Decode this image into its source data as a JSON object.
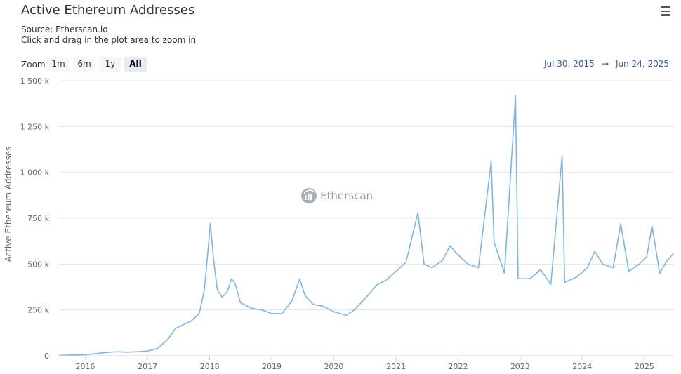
{
  "header": {
    "title": "Active Ethereum Addresses",
    "source": "Source: Etherscan.io",
    "hint": "Click and drag in the plot area to zoom in"
  },
  "toolbar": {
    "menu_icon": "hamburger-menu-icon"
  },
  "range_selector": {
    "zoom_label": "Zoom",
    "buttons": [
      {
        "label": "1m"
      },
      {
        "label": "6m"
      },
      {
        "label": "1y"
      },
      {
        "label": "All",
        "active": true
      }
    ],
    "from": "Jul 30, 2015",
    "arrow": "→",
    "to": "Jun 24, 2025"
  },
  "watermark": {
    "text": "Etherscan",
    "icon": "etherscan-logo-icon"
  },
  "colors": {
    "series": "#7cb5ec",
    "grid": "#e6e6e6",
    "range_value": "#335cad",
    "active_button": "#e6ebf5"
  },
  "chart_data": {
    "type": "line",
    "title": "Active Ethereum Addresses",
    "subtitle": "Source: Etherscan.io",
    "xlabel": "",
    "ylabel": "Active Ethereum Addresses",
    "xlim": [
      "2015-07-30",
      "2025-06-24"
    ],
    "ylim": [
      0,
      1500000
    ],
    "y_ticks": [
      {
        "value": 0,
        "label": "0"
      },
      {
        "value": 250000,
        "label": "250 k"
      },
      {
        "value": 500000,
        "label": "500 k"
      },
      {
        "value": 750000,
        "label": "750 k"
      },
      {
        "value": 1000000,
        "label": "1 000 k"
      },
      {
        "value": 1250000,
        "label": "1 250 k"
      },
      {
        "value": 1500000,
        "label": "1 500 k"
      }
    ],
    "x_ticks": [
      {
        "value": "2016-01-01",
        "label": "2016"
      },
      {
        "value": "2017-01-01",
        "label": "2017"
      },
      {
        "value": "2018-01-01",
        "label": "2018"
      },
      {
        "value": "2019-01-01",
        "label": "2019"
      },
      {
        "value": "2020-01-01",
        "label": "2020"
      },
      {
        "value": "2021-01-01",
        "label": "2021"
      },
      {
        "value": "2022-01-01",
        "label": "2022"
      },
      {
        "value": "2023-01-01",
        "label": "2023"
      },
      {
        "value": "2024-01-01",
        "label": "2024"
      },
      {
        "value": "2025-01-01",
        "label": "2025"
      }
    ],
    "grid": true,
    "legend": false,
    "series": [
      {
        "points": [
          [
            "2015-07-30",
            2000
          ],
          [
            "2015-10-01",
            4000
          ],
          [
            "2016-01-01",
            6000
          ],
          [
            "2016-03-01",
            12000
          ],
          [
            "2016-05-01",
            18000
          ],
          [
            "2016-07-01",
            22000
          ],
          [
            "2016-09-01",
            20000
          ],
          [
            "2016-11-01",
            22000
          ],
          [
            "2017-01-01",
            26000
          ],
          [
            "2017-03-01",
            40000
          ],
          [
            "2017-05-01",
            90000
          ],
          [
            "2017-06-15",
            150000
          ],
          [
            "2017-08-01",
            170000
          ],
          [
            "2017-09-15",
            190000
          ],
          [
            "2017-11-01",
            230000
          ],
          [
            "2017-12-01",
            360000
          ],
          [
            "2017-12-20",
            550000
          ],
          [
            "2018-01-05",
            720000
          ],
          [
            "2018-01-25",
            520000
          ],
          [
            "2018-02-15",
            360000
          ],
          [
            "2018-03-15",
            320000
          ],
          [
            "2018-04-15",
            350000
          ],
          [
            "2018-05-10",
            420000
          ],
          [
            "2018-06-01",
            390000
          ],
          [
            "2018-07-01",
            290000
          ],
          [
            "2018-09-01",
            260000
          ],
          [
            "2018-11-01",
            250000
          ],
          [
            "2019-01-01",
            230000
          ],
          [
            "2019-03-01",
            230000
          ],
          [
            "2019-05-01",
            300000
          ],
          [
            "2019-06-15",
            420000
          ],
          [
            "2019-07-15",
            330000
          ],
          [
            "2019-09-01",
            280000
          ],
          [
            "2019-11-01",
            270000
          ],
          [
            "2020-01-01",
            240000
          ],
          [
            "2020-03-15",
            220000
          ],
          [
            "2020-05-01",
            250000
          ],
          [
            "2020-07-01",
            310000
          ],
          [
            "2020-09-15",
            390000
          ],
          [
            "2020-11-01",
            410000
          ],
          [
            "2021-01-01",
            460000
          ],
          [
            "2021-03-01",
            510000
          ],
          [
            "2021-05-10",
            780000
          ],
          [
            "2021-06-15",
            500000
          ],
          [
            "2021-08-01",
            480000
          ],
          [
            "2021-10-01",
            520000
          ],
          [
            "2021-11-15",
            600000
          ],
          [
            "2022-01-01",
            550000
          ],
          [
            "2022-03-01",
            500000
          ],
          [
            "2022-05-01",
            480000
          ],
          [
            "2022-07-15",
            1060000
          ],
          [
            "2022-08-01",
            620000
          ],
          [
            "2022-10-01",
            450000
          ],
          [
            "2022-12-05",
            1420000
          ],
          [
            "2022-12-20",
            420000
          ],
          [
            "2023-03-01",
            420000
          ],
          [
            "2023-05-01",
            470000
          ],
          [
            "2023-07-01",
            390000
          ],
          [
            "2023-09-05",
            1090000
          ],
          [
            "2023-09-20",
            400000
          ],
          [
            "2023-12-01",
            430000
          ],
          [
            "2024-02-01",
            480000
          ],
          [
            "2024-03-15",
            570000
          ],
          [
            "2024-05-01",
            500000
          ],
          [
            "2024-07-01",
            480000
          ],
          [
            "2024-08-15",
            720000
          ],
          [
            "2024-10-01",
            460000
          ],
          [
            "2024-12-01",
            500000
          ],
          [
            "2025-01-15",
            540000
          ],
          [
            "2025-02-15",
            710000
          ],
          [
            "2025-04-01",
            450000
          ],
          [
            "2025-05-15",
            520000
          ],
          [
            "2025-06-24",
            560000
          ]
        ]
      }
    ]
  }
}
